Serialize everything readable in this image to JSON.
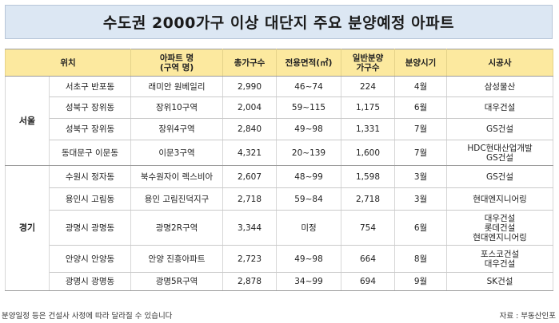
{
  "title": "수도권 2000가구 이상 대단지 주요 분양예정 아파트",
  "headers": {
    "location": "위치",
    "apt_name_line1": "아파트 명",
    "apt_name_line2": "(구역 명)",
    "total_units": "총가구수",
    "area": "전용면적(㎡)",
    "general_sale_line1": "일반분양",
    "general_sale_line2": "가구수",
    "sale_period": "분양시기",
    "builder": "시공사"
  },
  "regions": {
    "seoul": "서울",
    "gyeonggi": "경기"
  },
  "rows": [
    {
      "location": "서초구 반포동",
      "apt": "래미안 원베일리",
      "total": "2,990",
      "area": "46~74",
      "general": "224",
      "period": "4월",
      "builder": [
        "삼성물산"
      ]
    },
    {
      "location": "성북구 장위동",
      "apt": "장위10구역",
      "total": "2,004",
      "area": "59~115",
      "general": "1,175",
      "period": "6월",
      "builder": [
        "대우건설"
      ]
    },
    {
      "location": "성북구 장위동",
      "apt": "장위4구역",
      "total": "2,840",
      "area": "49~98",
      "general": "1,331",
      "period": "7월",
      "builder": [
        "GS건설"
      ]
    },
    {
      "location": "동대문구 이문동",
      "apt": "이문3구역",
      "total": "4,321",
      "area": "20~139",
      "general": "1,600",
      "period": "7월",
      "builder": [
        "HDC현대산업개발",
        "GS건설"
      ]
    },
    {
      "location": "수원시 정자동",
      "apt": "북수원자이 렉스비아",
      "total": "2,607",
      "area": "48~99",
      "general": "1,598",
      "period": "3월",
      "builder": [
        "GS건설"
      ]
    },
    {
      "location": "용인시 고림동",
      "apt": "용인 고림진덕지구",
      "total": "2,718",
      "area": "59~84",
      "general": "2,718",
      "period": "3월",
      "builder": [
        "현대엔지니어링"
      ]
    },
    {
      "location": "광명시 광명동",
      "apt": "광명2R구역",
      "total": "3,344",
      "area": "미정",
      "general": "754",
      "period": "6월",
      "builder": [
        "대우건설",
        "롯데건설",
        "현대엔지니어링"
      ]
    },
    {
      "location": "안양시 안양동",
      "apt": "안양 진흥아파트",
      "total": "2,723",
      "area": "49~98",
      "general": "664",
      "period": "8월",
      "builder": [
        "포스코건설",
        "대우건설"
      ]
    },
    {
      "location": "광명시 광명동",
      "apt": "광명5R구역",
      "total": "2,878",
      "area": "34~99",
      "general": "694",
      "period": "9월",
      "builder": [
        "SK건설"
      ]
    }
  ],
  "footer": {
    "note": "분양일정 등은 건설사 사정에 따라 달라질 수 있습니다",
    "source": "자료 : 부동산인포"
  }
}
